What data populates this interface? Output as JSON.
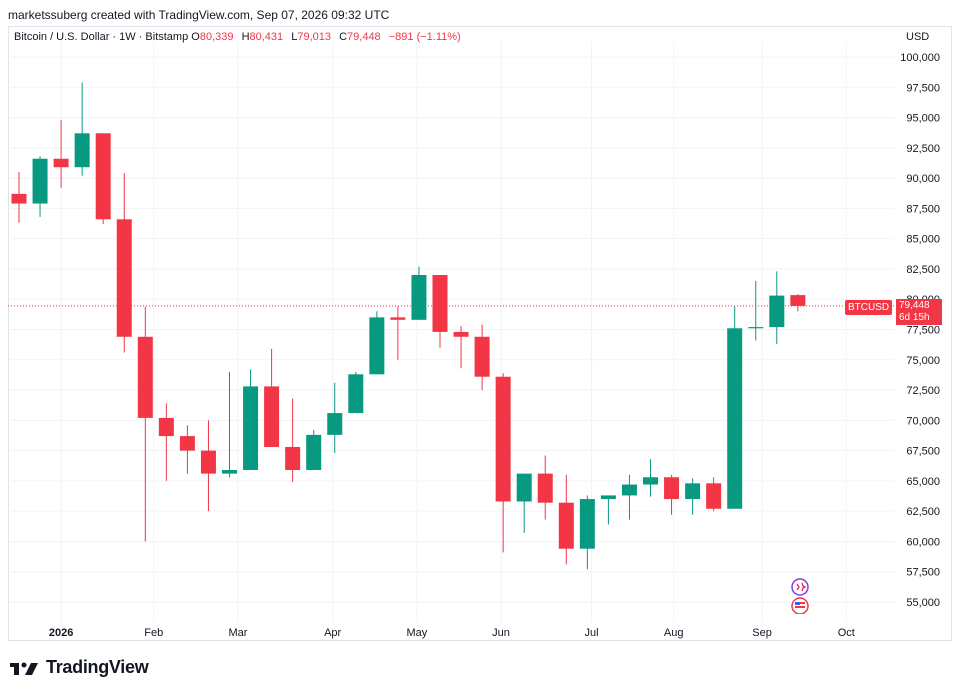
{
  "header": {
    "attribution": "marketssuberg created with TradingView.com, Sep 07, 2026 09:32 UTC"
  },
  "legend": {
    "symbol_desc": "Bitcoin / U.S. Dollar · 1W · Bitstamp",
    "open_key": "O",
    "open_val": "80,339",
    "high_key": "H",
    "high_val": "80,431",
    "low_key": "L",
    "low_val": "79,013",
    "close_key": "C",
    "close_val": "79,448",
    "change": "−891 (−1.11%)"
  },
  "currency": "USD",
  "price_tag": {
    "symbol": "BTCUSD",
    "price": "79,448",
    "countdown": "6d 15h"
  },
  "footer": {
    "brand": "TradingView"
  },
  "colors": {
    "up": "#089981",
    "down": "#f23645",
    "grid": "#f0f3fa",
    "text": "#131722"
  },
  "chart_data": {
    "type": "candlestick",
    "ylim": [
      52500,
      102500
    ],
    "y_ticks": [
      55000,
      57500,
      60000,
      62500,
      65000,
      67500,
      70000,
      72500,
      75000,
      77500,
      80000,
      82500,
      85000,
      87500,
      90000,
      92500,
      95000,
      97500,
      100000
    ],
    "y_tick_labels": [
      "55,000",
      "57,500",
      "60,000",
      "62,500",
      "65,000",
      "67,500",
      "70,000",
      "72,500",
      "75,000",
      "77,500",
      "80,000",
      "82,500",
      "85,000",
      "87,500",
      "90,000",
      "92,500",
      "95,000",
      "97,500",
      "100,000"
    ],
    "x_labels": [
      "2026",
      "Feb",
      "Mar",
      "Apr",
      "May",
      "Jun",
      "Jul",
      "Aug",
      "Sep",
      "Oct"
    ],
    "x_label_index": [
      2,
      6.4,
      10.4,
      14.9,
      18.9,
      22.9,
      27.2,
      31.1,
      35.3,
      39.3
    ],
    "last_price": 79448,
    "candles": [
      {
        "o": 88700,
        "h": 90500,
        "l": 86300,
        "c": 87900
      },
      {
        "o": 87900,
        "h": 91800,
        "l": 86800,
        "c": 91600
      },
      {
        "o": 91600,
        "h": 94800,
        "l": 89200,
        "c": 90900
      },
      {
        "o": 90900,
        "h": 97900,
        "l": 90200,
        "c": 93700
      },
      {
        "o": 93700,
        "h": 93700,
        "l": 86200,
        "c": 86600
      },
      {
        "o": 86600,
        "h": 90400,
        "l": 75600,
        "c": 76900
      },
      {
        "o": 76900,
        "h": 79400,
        "l": 60000,
        "c": 70200
      },
      {
        "o": 70200,
        "h": 71400,
        "l": 65000,
        "c": 68700
      },
      {
        "o": 68700,
        "h": 69600,
        "l": 65600,
        "c": 67500
      },
      {
        "o": 67500,
        "h": 70000,
        "l": 62500,
        "c": 65600
      },
      {
        "o": 65600,
        "h": 74000,
        "l": 65300,
        "c": 65900
      },
      {
        "o": 65900,
        "h": 74200,
        "l": 65900,
        "c": 72800
      },
      {
        "o": 72800,
        "h": 75900,
        "l": 67800,
        "c": 67800
      },
      {
        "o": 67800,
        "h": 71800,
        "l": 64900,
        "c": 65900
      },
      {
        "o": 65900,
        "h": 69200,
        "l": 65900,
        "c": 68800
      },
      {
        "o": 68800,
        "h": 73100,
        "l": 67300,
        "c": 70600
      },
      {
        "o": 70600,
        "h": 74000,
        "l": 70600,
        "c": 73800
      },
      {
        "o": 73800,
        "h": 79000,
        "l": 73800,
        "c": 78500
      },
      {
        "o": 78500,
        "h": 79400,
        "l": 75000,
        "c": 78300
      },
      {
        "o": 78300,
        "h": 82700,
        "l": 78300,
        "c": 82000
      },
      {
        "o": 82000,
        "h": 82000,
        "l": 76000,
        "c": 77300
      },
      {
        "o": 77300,
        "h": 77800,
        "l": 74300,
        "c": 76900
      },
      {
        "o": 76900,
        "h": 77900,
        "l": 72500,
        "c": 73600
      },
      {
        "o": 73600,
        "h": 73900,
        "l": 59100,
        "c": 63300
      },
      {
        "o": 63300,
        "h": 65600,
        "l": 60700,
        "c": 65600
      },
      {
        "o": 65600,
        "h": 67100,
        "l": 61800,
        "c": 63200
      },
      {
        "o": 63200,
        "h": 65500,
        "l": 58100,
        "c": 59400
      },
      {
        "o": 59400,
        "h": 63800,
        "l": 57700,
        "c": 63500
      },
      {
        "o": 63500,
        "h": 63800,
        "l": 61400,
        "c": 63800
      },
      {
        "o": 63800,
        "h": 65500,
        "l": 61800,
        "c": 64700
      },
      {
        "o": 64700,
        "h": 66800,
        "l": 63700,
        "c": 65300
      },
      {
        "o": 65300,
        "h": 65500,
        "l": 62200,
        "c": 63500
      },
      {
        "o": 63500,
        "h": 65200,
        "l": 62200,
        "c": 64800
      },
      {
        "o": 64800,
        "h": 65300,
        "l": 62500,
        "c": 62700
      },
      {
        "o": 62700,
        "h": 79400,
        "l": 62700,
        "c": 77600
      },
      {
        "o": 77600,
        "h": 81500,
        "l": 76600,
        "c": 77700
      },
      {
        "o": 77700,
        "h": 82300,
        "l": 76300,
        "c": 80300
      },
      {
        "o": 80339,
        "h": 80431,
        "l": 79013,
        "c": 79448
      }
    ]
  }
}
